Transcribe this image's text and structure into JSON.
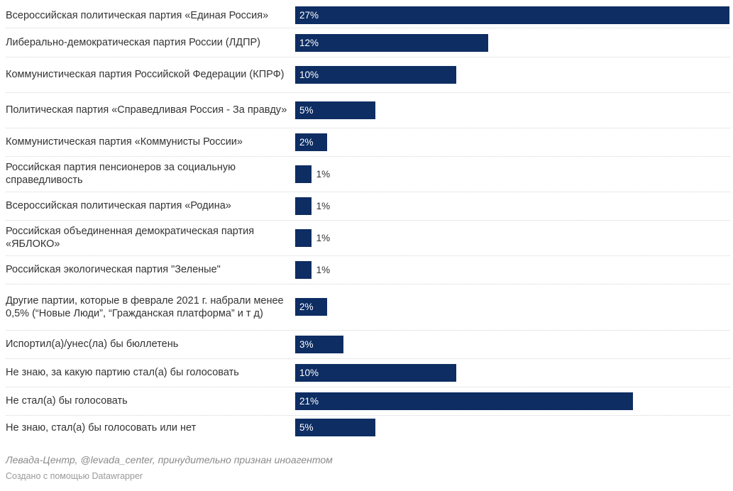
{
  "chart_data": {
    "type": "bar",
    "orientation": "horizontal",
    "categories": [
      "Всероссийская политическая партия «Единая Россия»",
      "Либерально-демократическая партия России (ЛДПР)",
      "Коммунистическая партия Российской Федерации (КПРФ)",
      "Политическая партия «Справедливая Россия - За правду»",
      "Коммунистическая партия «Коммунисты России»",
      "Российская партия пенсионеров за социальную справедливость",
      "Всероссийская политическая партия «Родина»",
      "Российская объединенная демократическая партия «ЯБЛОКО»",
      "Российская экологическая партия \"Зеленые\"",
      "Другие партии, которые в феврале 2021 г. набрали менее 0,5% (“Новые Люди”, “Гражданская платформа” и т д)",
      "Испортил(а)/унес(ла) бы бюллетень",
      "Не знаю, за какую партию стал(а) бы голосовать",
      "Не стал(а) бы голосовать",
      "Не знаю, стал(а) бы голосовать или нет"
    ],
    "values": [
      27,
      12,
      10,
      5,
      2,
      1,
      1,
      1,
      1,
      2,
      3,
      10,
      21,
      5
    ],
    "value_labels": [
      "27%",
      "12%",
      "10%",
      "5%",
      "2%",
      "1%",
      "1%",
      "1%",
      "1%",
      "2%",
      "3%",
      "10%",
      "21%",
      "5%"
    ],
    "xlim": [
      0,
      27
    ],
    "grid": false,
    "bar_color": "#0d2d63"
  },
  "footer": {
    "source": "Левада-Центр, @levada_center, принудительно признан иноагентом",
    "credit": "Создано с помощью Datawrapper"
  }
}
